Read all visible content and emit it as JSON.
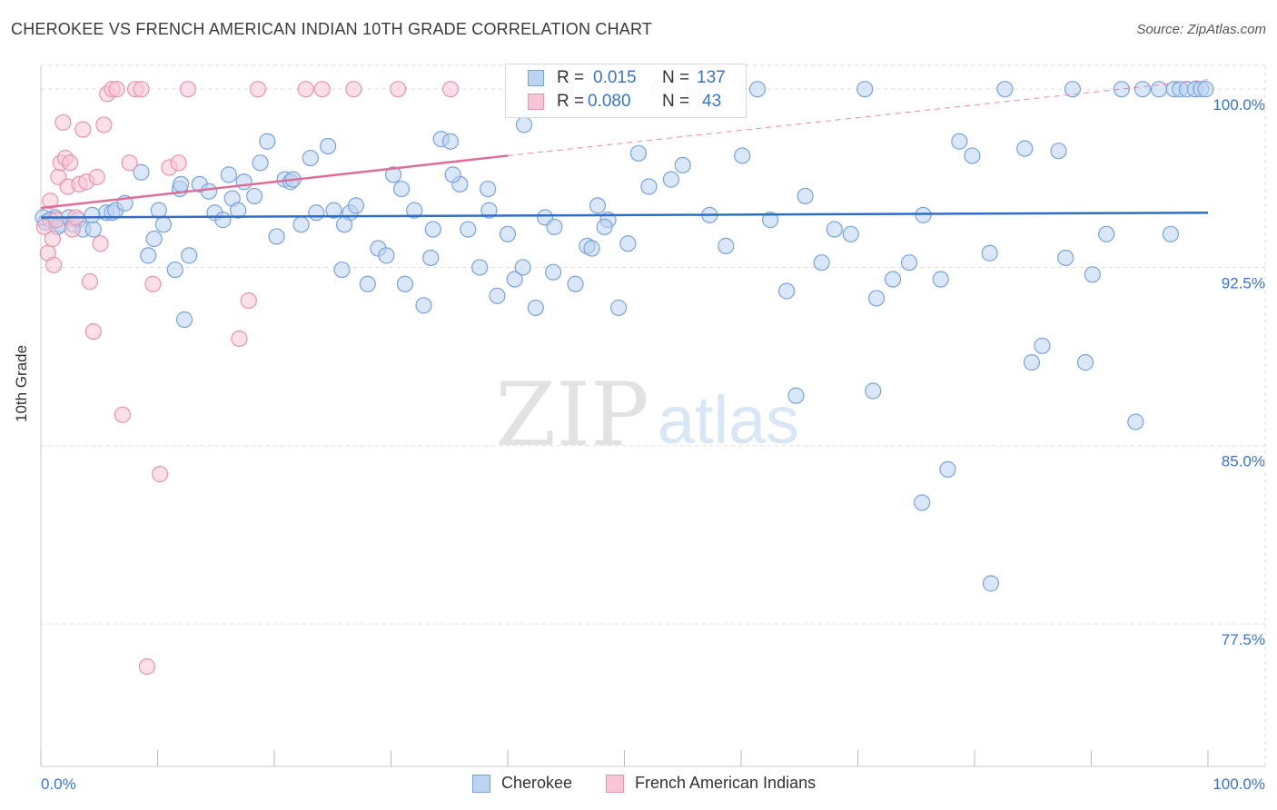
{
  "title": "CHEROKEE VS FRENCH AMERICAN INDIAN 10TH GRADE CORRELATION CHART",
  "source": "Source: ZipAtlas.com",
  "watermark": {
    "zip": "ZIP",
    "atlas": "atlas"
  },
  "legend": {
    "r_label": "R =",
    "n_label": "N =",
    "series": [
      {
        "r": "0.015",
        "n": "137"
      },
      {
        "r": "0.080",
        "n": "43"
      }
    ]
  },
  "colors": {
    "cherokee_fill": "#bcd3f2",
    "cherokee_stroke": "#7aa3db",
    "cherokee_line": "#2e6ec4",
    "french_fill": "#f7c6d6",
    "french_stroke": "#e993b0",
    "french_line": "#e06c98",
    "tick_label": "#3a74c9",
    "grid": "#dddddd"
  },
  "chart_data": {
    "type": "scatter",
    "title": "CHEROKEE VS FRENCH AMERICAN INDIAN 10TH GRADE CORRELATION CHART",
    "xlabel": "",
    "ylabel": "10th Grade",
    "xlim": [
      0,
      100
    ],
    "ylim": [
      71.5,
      101
    ],
    "x_tick_labels": [
      "0.0%",
      "100.0%"
    ],
    "y_ticks": [
      77.5,
      85.0,
      92.5,
      100.0
    ],
    "y_tick_labels": [
      "77.5%",
      "85.0%",
      "92.5%",
      "100.0%"
    ],
    "grid": true,
    "legend_position": "bottom-center",
    "series": [
      {
        "name": "Cherokee",
        "r": 0.015,
        "n": 137,
        "trend": {
          "x": [
            0,
            100
          ],
          "y": [
            94.6,
            94.8
          ]
        },
        "x": [
          0.4,
          1.2,
          1.7,
          2.4,
          2.8,
          3.2,
          3.6,
          4.5,
          5.6,
          6.1,
          6.4,
          7.2,
          8.6,
          9.2,
          9.7,
          10.1,
          10.5,
          11.5,
          11.9,
          12.3,
          12.7,
          13.6,
          14.4,
          14.9,
          15.6,
          16.1,
          16.4,
          16.9,
          17.4,
          18.3,
          18.8,
          19.4,
          20.2,
          20.9,
          21.4,
          22.3,
          23.1,
          23.6,
          24.6,
          25.1,
          25.8,
          26.5,
          27.0,
          28.0,
          28.9,
          29.6,
          30.2,
          31.2,
          32.0,
          32.8,
          33.4,
          34.3,
          35.1,
          35.9,
          36.6,
          37.6,
          38.3,
          39.1,
          40.0,
          40.6,
          41.4,
          42.4,
          43.2,
          44.0,
          45.0,
          45.8,
          46.8,
          47.7,
          48.6,
          49.5,
          50.3,
          51.2,
          52.1,
          53.0,
          54.0,
          55.0,
          56.0,
          57.3,
          58.7,
          60.1,
          61.4,
          62.5,
          63.9,
          65.5,
          66.9,
          68.0,
          69.4,
          70.6,
          71.6,
          73.0,
          74.4,
          75.6,
          77.1,
          78.7,
          79.8,
          81.3,
          82.6,
          84.3,
          85.8,
          87.2,
          87.8,
          88.4,
          89.5,
          91.3,
          92.6,
          93.8,
          94.4,
          95.8,
          97.1,
          97.6,
          98.2,
          98.9,
          99.4,
          99.8,
          0.2,
          0.8,
          1.4,
          4.4,
          12.0,
          21.6,
          26.0,
          30.9,
          33.6,
          35.3,
          38.4,
          41.3,
          43.9,
          47.2,
          48.3,
          64.7,
          71.3,
          75.5,
          77.7,
          81.4,
          84.9,
          90.1,
          96.8
        ],
        "y": [
          94.4,
          94.6,
          94.3,
          94.6,
          94.3,
          94.5,
          94.1,
          94.1,
          94.8,
          94.8,
          94.9,
          95.2,
          96.5,
          93.0,
          93.7,
          94.9,
          94.3,
          92.4,
          95.8,
          90.3,
          93.0,
          96.0,
          95.7,
          94.8,
          94.5,
          96.4,
          95.4,
          94.9,
          96.1,
          95.5,
          96.9,
          97.8,
          93.8,
          96.2,
          96.1,
          94.3,
          97.1,
          94.8,
          97.6,
          94.9,
          92.4,
          94.8,
          95.1,
          91.8,
          93.3,
          93.0,
          96.4,
          91.8,
          94.9,
          90.9,
          92.9,
          97.9,
          97.8,
          96.0,
          94.1,
          92.5,
          95.8,
          91.3,
          93.9,
          92.0,
          98.5,
          90.8,
          94.6,
          94.2,
          100.0,
          91.8,
          93.4,
          95.1,
          94.5,
          90.8,
          93.5,
          97.3,
          95.9,
          100.0,
          96.2,
          96.8,
          100.0,
          94.7,
          93.4,
          97.2,
          100.0,
          94.5,
          91.5,
          95.5,
          92.7,
          94.1,
          93.9,
          100.0,
          91.2,
          92.0,
          92.7,
          94.7,
          92.0,
          97.8,
          97.2,
          93.1,
          100.0,
          97.5,
          89.2,
          97.4,
          92.9,
          100.0,
          88.5,
          93.9,
          100.0,
          86.0,
          100.0,
          100.0,
          100.0,
          100.0,
          100.0,
          100.0,
          100.0,
          100.0,
          94.6,
          94.5,
          94.2,
          94.7,
          96.0,
          96.2,
          94.3,
          95.8,
          94.1,
          96.4,
          94.9,
          92.5,
          92.3,
          93.3,
          94.2,
          87.1,
          87.3,
          82.6,
          84.0,
          79.2,
          88.5,
          92.2,
          93.9
        ]
      },
      {
        "name": "French American Indians",
        "r": 0.08,
        "n": 43,
        "trend": {
          "x": [
            0,
            40
          ],
          "y": [
            95.0,
            97.2
          ]
        },
        "trend_dashed": {
          "x": [
            40,
            100
          ],
          "y": [
            97.2,
            100.4
          ]
        },
        "x": [
          0.3,
          0.6,
          0.8,
          1.0,
          1.1,
          1.3,
          1.5,
          1.7,
          1.9,
          2.1,
          2.3,
          2.5,
          2.7,
          3.0,
          3.3,
          3.6,
          3.9,
          4.2,
          4.5,
          4.8,
          5.1,
          5.4,
          5.7,
          6.1,
          6.5,
          7.0,
          7.6,
          8.1,
          8.6,
          9.1,
          9.6,
          10.2,
          11.0,
          11.8,
          12.6,
          17.0,
          17.8,
          18.6,
          22.7,
          24.1,
          26.8,
          30.6,
          35.1
        ],
        "y": [
          94.2,
          93.1,
          95.3,
          93.7,
          92.6,
          94.5,
          96.3,
          96.9,
          98.6,
          97.1,
          95.9,
          96.9,
          94.1,
          94.6,
          96.0,
          98.3,
          96.1,
          91.9,
          89.8,
          96.3,
          93.5,
          98.5,
          99.8,
          100.0,
          100.0,
          86.3,
          96.9,
          100.0,
          100.0,
          75.7,
          91.8,
          83.8,
          96.7,
          96.9,
          100.0,
          89.5,
          91.1,
          100.0,
          100.0,
          100.0,
          100.0,
          100.0,
          100.0
        ]
      }
    ]
  }
}
